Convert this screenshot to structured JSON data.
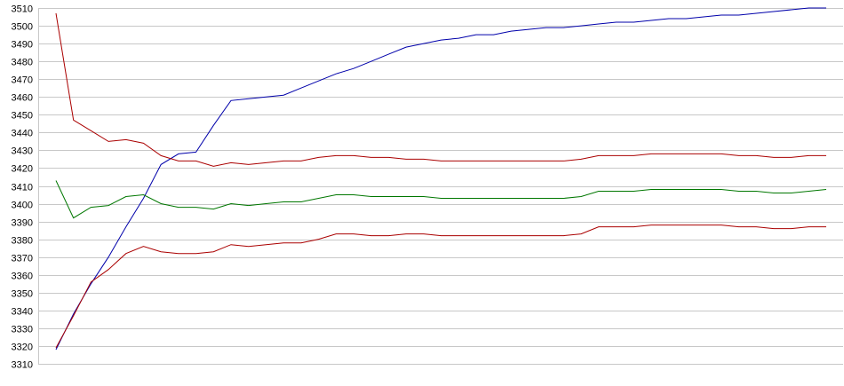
{
  "chart_data": {
    "type": "line",
    "title": "",
    "xlabel": "",
    "ylabel": "",
    "ylim": [
      3310,
      3510
    ],
    "yticks": [
      3310,
      3320,
      3330,
      3340,
      3350,
      3360,
      3370,
      3380,
      3390,
      3400,
      3410,
      3420,
      3430,
      3440,
      3450,
      3460,
      3470,
      3480,
      3490,
      3500,
      3510
    ],
    "x": [
      0,
      1,
      2,
      3,
      4,
      5,
      6,
      7,
      8,
      9,
      10,
      11,
      12,
      13,
      14,
      15,
      16,
      17,
      18,
      19,
      20,
      21,
      22,
      23,
      24,
      25,
      26,
      27,
      28,
      29,
      30,
      31,
      32,
      33,
      34,
      35,
      36,
      37,
      38,
      39,
      40,
      41,
      42,
      43,
      44
    ],
    "grid": true,
    "legend": "none",
    "series": [
      {
        "color": "#0000aa",
        "values": [
          3318,
          3338,
          3355,
          3370,
          3387,
          3403,
          3422,
          3428,
          3429,
          3444,
          3458,
          3459,
          3460,
          3461,
          3465,
          3469,
          3473,
          3476,
          3480,
          3484,
          3488,
          3490,
          3492,
          3493,
          3495,
          3495,
          3497,
          3498,
          3499,
          3499,
          3500,
          3501,
          3502,
          3502,
          3503,
          3504,
          3504,
          3505,
          3506,
          3506,
          3507,
          3508,
          3509,
          3510,
          3510
        ]
      },
      {
        "color": "#aa0000",
        "values": [
          3507,
          3447,
          3441,
          3435,
          3436,
          3434,
          3427,
          3424,
          3424,
          3421,
          3423,
          3422,
          3423,
          3424,
          3424,
          3426,
          3427,
          3427,
          3426,
          3426,
          3425,
          3425,
          3424,
          3424,
          3424,
          3424,
          3424,
          3424,
          3424,
          3424,
          3425,
          3427,
          3427,
          3427,
          3428,
          3428,
          3428,
          3428,
          3428,
          3427,
          3427,
          3426,
          3426,
          3427,
          3427
        ]
      },
      {
        "color": "#007700",
        "values": [
          3413,
          3392,
          3398,
          3399,
          3404,
          3405,
          3400,
          3398,
          3398,
          3397,
          3400,
          3399,
          3400,
          3401,
          3401,
          3403,
          3405,
          3405,
          3404,
          3404,
          3404,
          3404,
          3403,
          3403,
          3403,
          3403,
          3403,
          3403,
          3403,
          3403,
          3404,
          3407,
          3407,
          3407,
          3408,
          3408,
          3408,
          3408,
          3408,
          3407,
          3407,
          3406,
          3406,
          3407,
          3408
        ]
      },
      {
        "color": "#aa0000",
        "values": [
          3319,
          3337,
          3356,
          3363,
          3372,
          3376,
          3373,
          3372,
          3372,
          3373,
          3377,
          3376,
          3377,
          3378,
          3378,
          3380,
          3383,
          3383,
          3382,
          3382,
          3383,
          3383,
          3382,
          3382,
          3382,
          3382,
          3382,
          3382,
          3382,
          3382,
          3383,
          3387,
          3387,
          3387,
          3388,
          3388,
          3388,
          3388,
          3388,
          3387,
          3387,
          3386,
          3386,
          3387,
          3387
        ]
      }
    ]
  }
}
